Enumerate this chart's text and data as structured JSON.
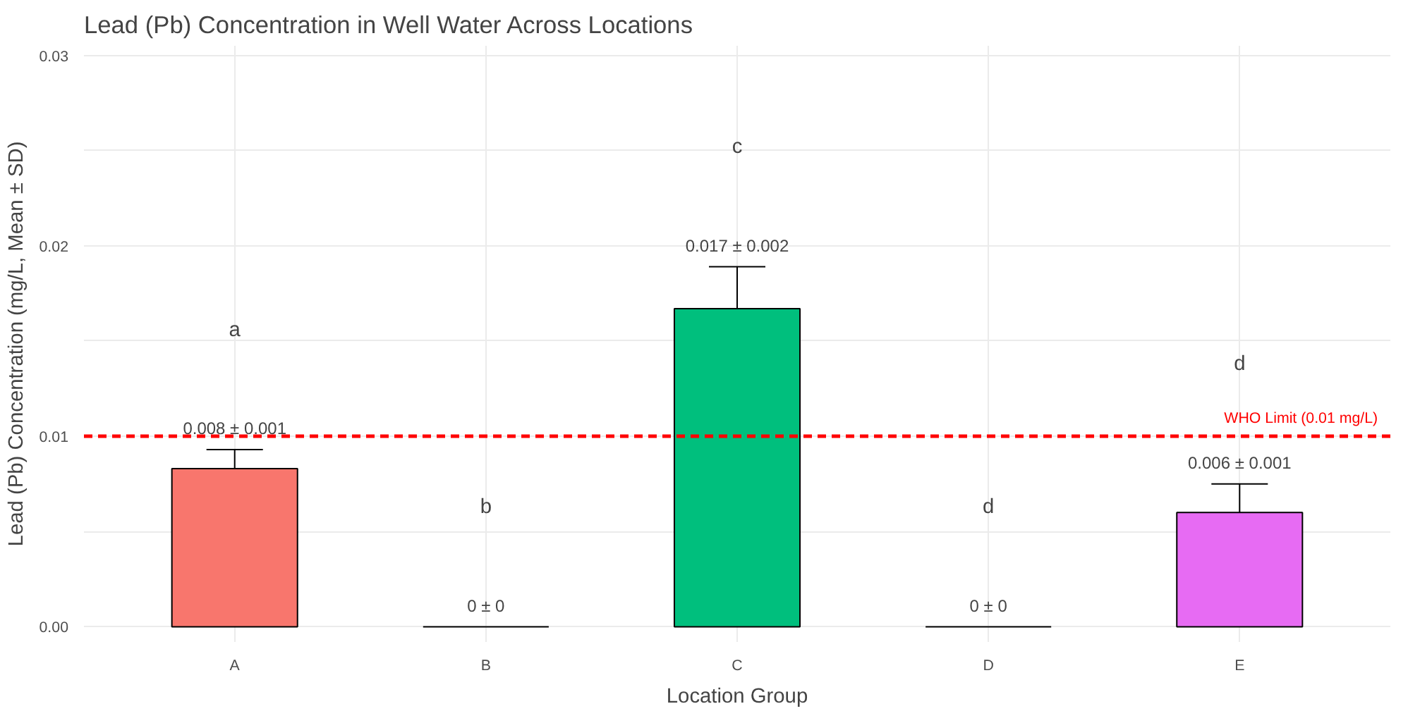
{
  "chart_data": {
    "type": "bar",
    "title": "Lead (Pb) Concentration in Well Water Across Locations",
    "xlabel": "Location Group",
    "ylabel": "Lead (Pb) Concentration (mg/L, Mean ± SD)",
    "categories": [
      "A",
      "B",
      "C",
      "D",
      "E"
    ],
    "values": [
      0.0083,
      0,
      0.0167,
      0,
      0.006
    ],
    "colors": [
      "#f8766d",
      "#000000",
      "#00bf7d",
      "#000000",
      "#e76bf3"
    ],
    "errors": [
      0.001,
      0,
      0.0022,
      0,
      0.0015
    ],
    "value_labels": [
      "0.008 ± 0.001",
      "0 ± 0",
      "0.017 ± 0.002",
      "0 ± 0",
      "0.006 ± 0.001"
    ],
    "annotations": [
      "a",
      "b",
      "c",
      "d",
      "d"
    ],
    "ref_lines": [
      {
        "axis": "y",
        "value": 0.01,
        "label": "WHO Limit (0.01 mg/L)",
        "color": "#ff0000",
        "line_style": "dashed"
      }
    ],
    "ylim": [
      -0.0008,
      0.0305
    ],
    "yticks": [
      {
        "value": 0,
        "label": "0.00"
      },
      {
        "value": 0.005,
        "label": null
      },
      {
        "value": 0.01,
        "label": "0.01"
      },
      {
        "value": 0.015,
        "label": null
      },
      {
        "value": 0.02,
        "label": "0.02"
      },
      {
        "value": 0.025,
        "label": null
      },
      {
        "value": 0.03,
        "label": "0.03"
      }
    ],
    "grid": true
  }
}
